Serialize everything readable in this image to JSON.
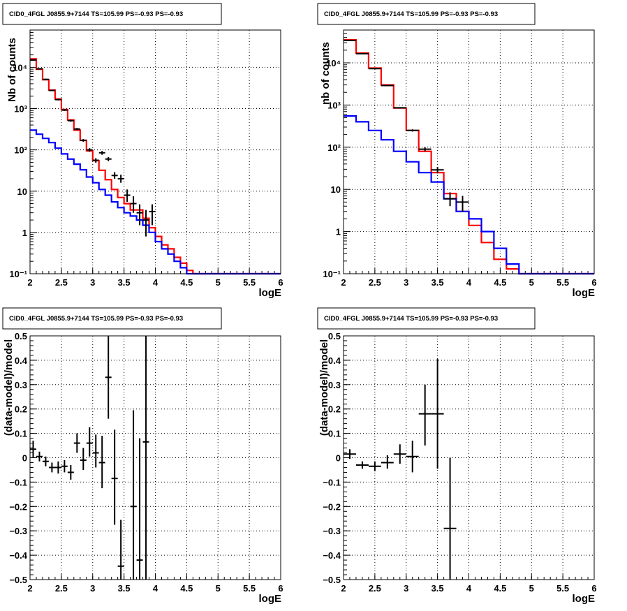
{
  "chart_data": [
    {
      "type": "line",
      "title": "CID0_4FGL J0855.9+7144 TS=105.99 PS=-0.93 PS=-0.93",
      "xlabel": "logE",
      "ylabel": "Nb of counts",
      "yscale": "log",
      "xlim": [
        2,
        6
      ],
      "ylim": [
        0.1,
        80000
      ],
      "grid": true,
      "xticks": [
        "2",
        "2.5",
        "3",
        "3.5",
        "4",
        "4.5",
        "5",
        "5.5",
        "6"
      ],
      "yticks": [
        {
          "value": 0.1,
          "label": "10⁻¹"
        },
        {
          "value": 1,
          "label": "1"
        },
        {
          "value": 10,
          "label": "10"
        },
        {
          "value": 100,
          "label": "10²"
        },
        {
          "value": 1000,
          "label": "10³"
        },
        {
          "value": 10000,
          "label": "10⁴"
        }
      ],
      "series": [
        {
          "color": "#ff0000",
          "style": "step",
          "edges": [
            2,
            2.1,
            2.2,
            2.3,
            2.4,
            2.5,
            2.6,
            2.7,
            2.8,
            2.9,
            3,
            3.1,
            3.2,
            3.3,
            3.4,
            3.5,
            3.6,
            3.7,
            3.8,
            3.9,
            4,
            4.1,
            4.2,
            4.3,
            4.4,
            4.5,
            4.6,
            4.7,
            4.8,
            4.9,
            5,
            5.1,
            5.2,
            5.3,
            5.4,
            5.5,
            5.6,
            5.7,
            5.8,
            5.9,
            6
          ],
          "values": [
            16000,
            9000,
            5000,
            2800,
            1700,
            950,
            530,
            300,
            170,
            95,
            55,
            32,
            19,
            11,
            7,
            5,
            3.5,
            3.5,
            2.2,
            1.3,
            0.8,
            0.5,
            0.4,
            0.25,
            0.18,
            0.12,
            0.1,
            0.1,
            0.1,
            0.1,
            0.1,
            0.1,
            0.1,
            0.1,
            0.1,
            0.1,
            0.1,
            0.1,
            0.1,
            0.1
          ]
        },
        {
          "color": "#0000ff",
          "style": "step",
          "edges": [
            2,
            2.1,
            2.2,
            2.3,
            2.4,
            2.5,
            2.6,
            2.7,
            2.8,
            2.9,
            3,
            3.1,
            3.2,
            3.3,
            3.4,
            3.5,
            3.6,
            3.7,
            3.8,
            3.9,
            4,
            4.1,
            4.2,
            4.3,
            4.4,
            4.5,
            4.6,
            4.7,
            4.8,
            4.9,
            5,
            5.1,
            5.2,
            5.3,
            5.4,
            5.5,
            5.6,
            5.7,
            5.8,
            5.9,
            6
          ],
          "values": [
            300,
            240,
            190,
            150,
            110,
            80,
            60,
            45,
            33,
            22,
            16,
            11,
            8,
            5.5,
            4,
            3,
            2.5,
            2,
            1.5,
            1,
            0.6,
            0.4,
            0.3,
            0.2,
            0.14,
            0.1,
            0.1,
            0.1,
            0.1,
            0.1,
            0.1,
            0.1,
            0.1,
            0.1,
            0.1,
            0.1,
            0.1,
            0.1,
            0.1,
            0.1
          ]
        },
        {
          "color": "#000000",
          "style": "errorbar",
          "points": [
            {
              "x": 2.05,
              "y": 15000,
              "dx": 0.05,
              "lo": 14500,
              "hi": 15500
            },
            {
              "x": 2.15,
              "y": 9200,
              "dx": 0.05,
              "lo": 8900,
              "hi": 9500
            },
            {
              "x": 2.25,
              "y": 5100,
              "dx": 0.05,
              "lo": 4900,
              "hi": 5300
            },
            {
              "x": 2.35,
              "y": 2750,
              "dx": 0.05,
              "lo": 2650,
              "hi": 2850
            },
            {
              "x": 2.45,
              "y": 1650,
              "dx": 0.05,
              "lo": 1580,
              "hi": 1720
            },
            {
              "x": 2.55,
              "y": 920,
              "dx": 0.05,
              "lo": 880,
              "hi": 960
            },
            {
              "x": 2.65,
              "y": 510,
              "dx": 0.05,
              "lo": 480,
              "hi": 540
            },
            {
              "x": 2.75,
              "y": 320,
              "dx": 0.05,
              "lo": 300,
              "hi": 340
            },
            {
              "x": 2.85,
              "y": 170,
              "dx": 0.05,
              "lo": 157,
              "hi": 183
            },
            {
              "x": 2.95,
              "y": 100,
              "dx": 0.05,
              "lo": 90,
              "hi": 110
            },
            {
              "x": 3.05,
              "y": 56,
              "dx": 0.05,
              "lo": 49,
              "hi": 63
            },
            {
              "x": 3.15,
              "y": 85,
              "dx": 0.05,
              "lo": 76,
              "hi": 94
            },
            {
              "x": 3.25,
              "y": 60,
              "dx": 0.05,
              "lo": 53,
              "hi": 67
            },
            {
              "x": 3.35,
              "y": 24,
              "dx": 0.05,
              "lo": 20,
              "hi": 29
            },
            {
              "x": 3.45,
              "y": 20,
              "dx": 0.05,
              "lo": 16,
              "hi": 25
            },
            {
              "x": 3.55,
              "y": 8,
              "dx": 0.05,
              "lo": 5.5,
              "hi": 11
            },
            {
              "x": 3.65,
              "y": 5,
              "dx": 0.05,
              "lo": 3,
              "hi": 7.5
            },
            {
              "x": 3.75,
              "y": 3,
              "dx": 0.05,
              "lo": 1.5,
              "hi": 4.8
            },
            {
              "x": 3.85,
              "y": 2,
              "dx": 0.05,
              "lo": 0.8,
              "hi": 3.5
            },
            {
              "x": 3.95,
              "y": 3.2,
              "dx": 0.05,
              "lo": 1.5,
              "hi": 4.8
            }
          ]
        }
      ]
    },
    {
      "type": "line",
      "title": "CID0_4FGL J0855.9+7144 TS=105.99 PS=-0.93 PS=-0.93",
      "xlabel": "logE",
      "ylabel": "nb of counts",
      "yscale": "log",
      "xlim": [
        2,
        6
      ],
      "ylim": [
        0.1,
        60000
      ],
      "grid": true,
      "xticks": [
        "2",
        "2.5",
        "3",
        "3.5",
        "4",
        "4.5",
        "5",
        "5.5",
        "6"
      ],
      "yticks": [
        {
          "value": 0.1,
          "label": "10⁻¹"
        },
        {
          "value": 1,
          "label": "1"
        },
        {
          "value": 10,
          "label": "10"
        },
        {
          "value": 100,
          "label": "10²"
        },
        {
          "value": 1000,
          "label": "10³"
        },
        {
          "value": 10000,
          "label": "10⁴"
        }
      ],
      "series": [
        {
          "color": "#ff0000",
          "style": "step",
          "edges": [
            2,
            2.2,
            2.4,
            2.6,
            2.8,
            3,
            3.2,
            3.4,
            3.6,
            3.8,
            4,
            4.2,
            4.4,
            4.6,
            4.8,
            5,
            5.2,
            5.4,
            5.6,
            5.8,
            6
          ],
          "values": [
            35000,
            17000,
            7500,
            3000,
            850,
            250,
            80,
            25,
            8,
            3,
            1.4,
            0.55,
            0.22,
            0.13,
            0.1,
            0.1,
            0.1,
            0.1,
            0.1,
            0.1
          ]
        },
        {
          "color": "#0000ff",
          "style": "step",
          "edges": [
            2,
            2.2,
            2.4,
            2.6,
            2.8,
            3,
            3.2,
            3.4,
            3.6,
            3.8,
            4,
            4.2,
            4.4,
            4.6,
            4.8,
            5,
            5.2,
            5.4,
            5.6,
            5.8,
            6
          ],
          "values": [
            550,
            400,
            250,
            150,
            80,
            45,
            25,
            15,
            6,
            3,
            2,
            1,
            0.4,
            0.17,
            0.1,
            0.1,
            0.1,
            0.1,
            0.1,
            0.1
          ]
        },
        {
          "color": "#000000",
          "style": "errorbar",
          "points": [
            {
              "x": 2.1,
              "y": 34000,
              "dx": 0.1,
              "lo": 33500,
              "hi": 34500
            },
            {
              "x": 2.3,
              "y": 16500,
              "dx": 0.1,
              "lo": 16200,
              "hi": 16800
            },
            {
              "x": 2.5,
              "y": 7300,
              "dx": 0.1,
              "lo": 7150,
              "hi": 7450
            },
            {
              "x": 2.7,
              "y": 2900,
              "dx": 0.1,
              "lo": 2800,
              "hi": 3000
            },
            {
              "x": 2.9,
              "y": 860,
              "dx": 0.1,
              "lo": 830,
              "hi": 890
            },
            {
              "x": 3.1,
              "y": 250,
              "dx": 0.1,
              "lo": 235,
              "hi": 265
            },
            {
              "x": 3.3,
              "y": 90,
              "dx": 0.1,
              "lo": 80,
              "hi": 100
            },
            {
              "x": 3.5,
              "y": 29,
              "dx": 0.1,
              "lo": 24,
              "hi": 34
            },
            {
              "x": 3.7,
              "y": 6,
              "dx": 0.1,
              "lo": 4,
              "hi": 8.5
            },
            {
              "x": 3.9,
              "y": 5,
              "dx": 0.1,
              "lo": 3,
              "hi": 7
            }
          ]
        }
      ]
    },
    {
      "type": "scatter",
      "title": "CID0_4FGL J0855.9+7144 TS=105.99 PS=-0.93 PS=-0.93",
      "xlabel": "logE",
      "ylabel": "(data-model)/model",
      "xlim": [
        2,
        6
      ],
      "ylim": [
        -0.5,
        0.5
      ],
      "grid": true,
      "xticks": [
        "2",
        "2.5",
        "3",
        "3.5",
        "4",
        "4.5",
        "5",
        "5.5",
        "6"
      ],
      "yticks": [
        "−0.5",
        "−0.4",
        "−0.3",
        "−0.2",
        "−0.1",
        "0",
        "0.1",
        "0.2",
        "0.3",
        "0.4",
        "0.5"
      ],
      "series": [
        {
          "color": "#000000",
          "style": "errorbar",
          "points": [
            {
              "x": 2.05,
              "y": 0.035,
              "dx": 0.05,
              "lo": 0.0,
              "hi": 0.07
            },
            {
              "x": 2.15,
              "y": 0.005,
              "dx": 0.05,
              "lo": -0.015,
              "hi": 0.025
            },
            {
              "x": 2.25,
              "y": -0.015,
              "dx": 0.05,
              "lo": -0.035,
              "hi": 0.005
            },
            {
              "x": 2.35,
              "y": -0.04,
              "dx": 0.05,
              "lo": -0.06,
              "hi": -0.02
            },
            {
              "x": 2.45,
              "y": -0.04,
              "dx": 0.05,
              "lo": -0.065,
              "hi": -0.015
            },
            {
              "x": 2.55,
              "y": -0.035,
              "dx": 0.05,
              "lo": -0.06,
              "hi": -0.01
            },
            {
              "x": 2.65,
              "y": -0.06,
              "dx": 0.05,
              "lo": -0.09,
              "hi": -0.03
            },
            {
              "x": 2.75,
              "y": 0.06,
              "dx": 0.05,
              "lo": 0.02,
              "hi": 0.1
            },
            {
              "x": 2.85,
              "y": -0.01,
              "dx": 0.05,
              "lo": -0.05,
              "hi": 0.04
            },
            {
              "x": 2.95,
              "y": 0.06,
              "dx": 0.05,
              "lo": 0.005,
              "hi": 0.125
            },
            {
              "x": 3.05,
              "y": 0.02,
              "dx": 0.05,
              "lo": -0.04,
              "hi": 0.095
            },
            {
              "x": 3.15,
              "y": -0.02,
              "dx": 0.05,
              "lo": -0.125,
              "hi": 0.09
            },
            {
              "x": 3.25,
              "y": 0.33,
              "dx": 0.05,
              "lo": 0.16,
              "hi": 0.5
            },
            {
              "x": 3.35,
              "y": -0.085,
              "dx": 0.05,
              "lo": -0.275,
              "hi": 0.115
            },
            {
              "x": 3.45,
              "y": -0.445,
              "dx": 0.05,
              "lo": -0.5,
              "hi": -0.255
            },
            {
              "x": 3.65,
              "y": -0.2,
              "dx": 0.05,
              "lo": -0.5,
              "hi": 0.195
            },
            {
              "x": 3.75,
              "y": -0.42,
              "dx": 0.05,
              "lo": -0.5,
              "hi": 0.08
            },
            {
              "x": 3.85,
              "y": 0.065,
              "dx": 0.05,
              "lo": -0.5,
              "hi": 0.5
            }
          ]
        }
      ]
    },
    {
      "type": "scatter",
      "title": "CID0_4FGL J0855.9+7144 TS=105.99 PS=-0.93 PS=-0.93",
      "xlabel": "logE",
      "ylabel": "(data-model)/model",
      "xlim": [
        2,
        6
      ],
      "ylim": [
        -0.5,
        0.5
      ],
      "grid": true,
      "xticks": [
        "2",
        "2.5",
        "3",
        "3.5",
        "4",
        "4.5",
        "5",
        "5.5",
        "6"
      ],
      "yticks": [
        "−0.5",
        "−0.4",
        "−0.3",
        "−0.2",
        "−0.1",
        "0",
        "0.1",
        "0.2",
        "0.3",
        "0.4",
        "0.5"
      ],
      "series": [
        {
          "color": "#000000",
          "style": "errorbar",
          "points": [
            {
              "x": 2.1,
              "y": 0.015,
              "dx": 0.1,
              "lo": -0.005,
              "hi": 0.035
            },
            {
              "x": 2.3,
              "y": -0.03,
              "dx": 0.1,
              "lo": -0.045,
              "hi": -0.015
            },
            {
              "x": 2.5,
              "y": -0.035,
              "dx": 0.1,
              "lo": -0.055,
              "hi": -0.015
            },
            {
              "x": 2.7,
              "y": -0.02,
              "dx": 0.1,
              "lo": -0.045,
              "hi": 0.01
            },
            {
              "x": 2.9,
              "y": 0.015,
              "dx": 0.1,
              "lo": -0.025,
              "hi": 0.055
            },
            {
              "x": 3.1,
              "y": 0.005,
              "dx": 0.1,
              "lo": -0.06,
              "hi": 0.07
            },
            {
              "x": 3.3,
              "y": 0.18,
              "dx": 0.1,
              "lo": 0.05,
              "hi": 0.3
            },
            {
              "x": 3.5,
              "y": 0.18,
              "dx": 0.1,
              "lo": -0.045,
              "hi": 0.405
            },
            {
              "x": 3.7,
              "y": -0.29,
              "dx": 0.1,
              "lo": -0.5,
              "hi": 0.0
            }
          ]
        }
      ]
    }
  ]
}
